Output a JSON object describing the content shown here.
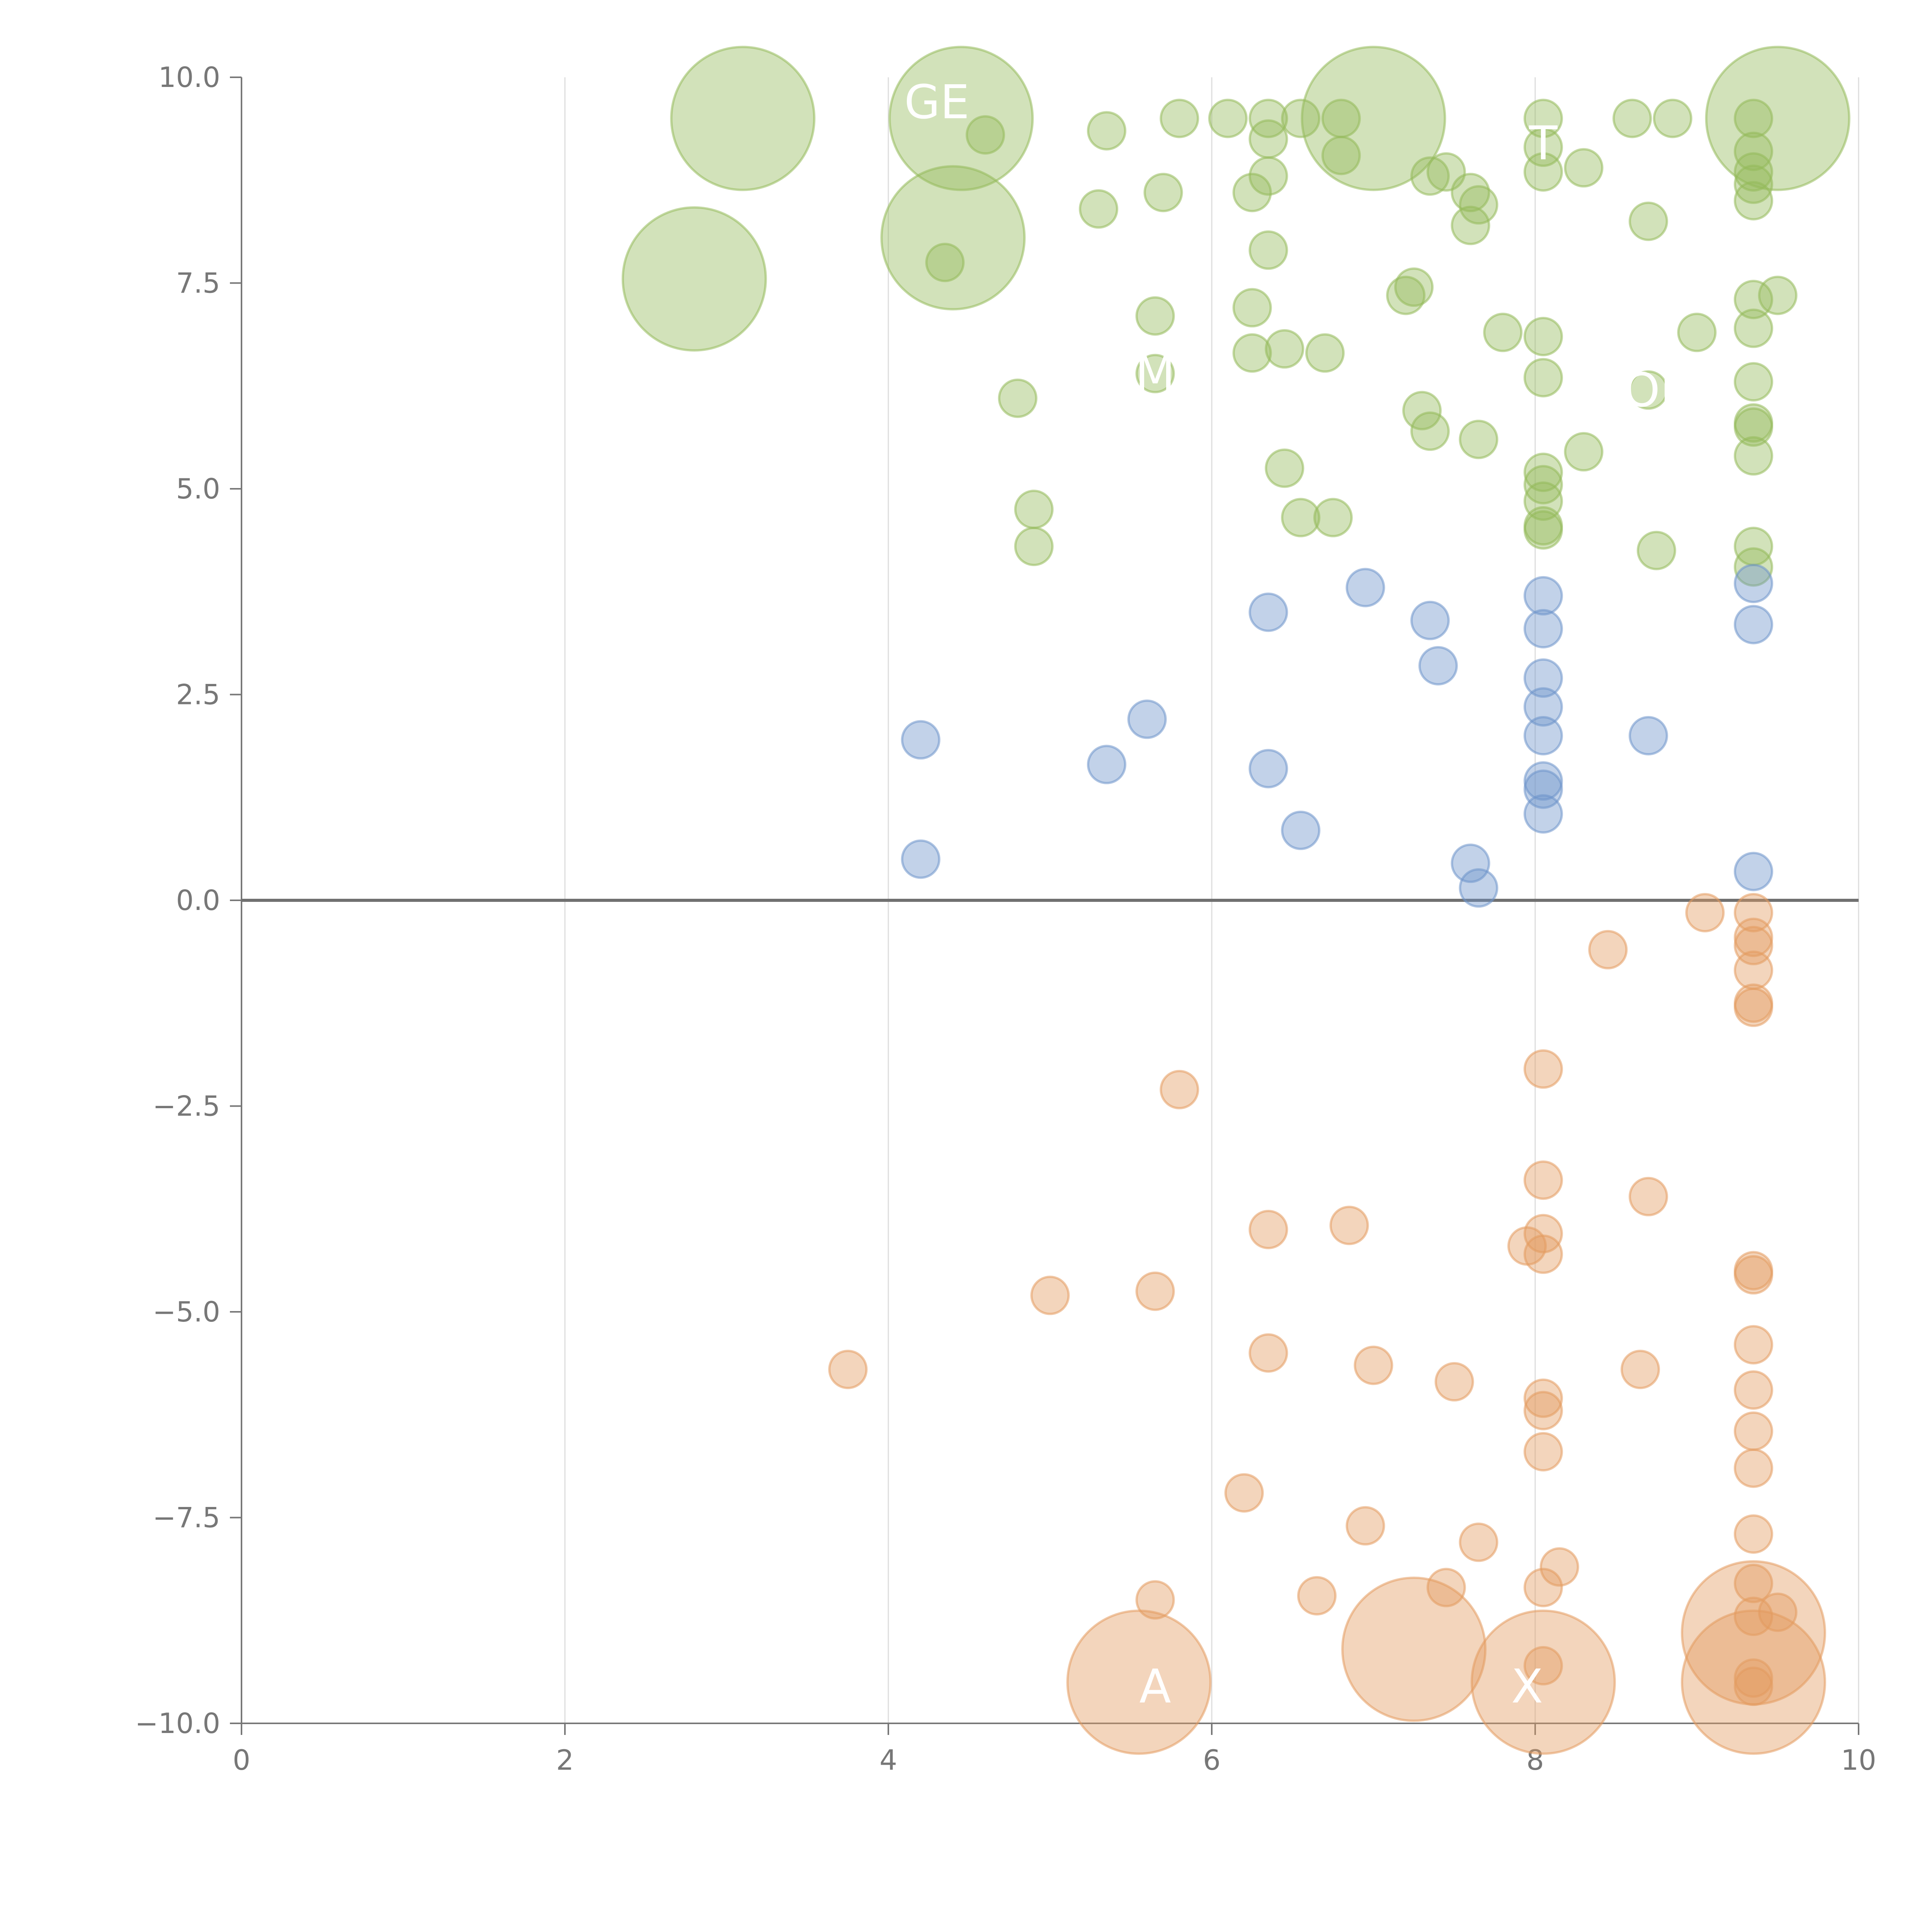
{
  "chart_data": {
    "type": "scatter",
    "title": "",
    "xlabel": "",
    "ylabel": "",
    "xlim": [
      0,
      10
    ],
    "ylim": [
      -10,
      10
    ],
    "grid": "vertical",
    "x_ticks": [
      0,
      2,
      4,
      6,
      8,
      10
    ],
    "y_ticks": [
      -10,
      -7.5,
      -5,
      -2.5,
      0,
      2.5,
      5,
      7.5,
      10
    ],
    "x_tick_labels": [
      "0",
      "2",
      "4",
      "6",
      "8",
      "10"
    ],
    "y_tick_labels": [
      "−10.0",
      "−7.5",
      "−5.0",
      "−2.5",
      "0.0",
      "2.5",
      "5.0",
      "7.5",
      "10.0"
    ],
    "zero_line": 0,
    "colors": {
      "positive_high": "#93b95a",
      "positive_low": "#6d93cb",
      "negative": "#e39a5f",
      "axis": "#777777",
      "grid": "#dddddd"
    },
    "series": [
      {
        "name": "green",
        "color": "#93b95a",
        "points": [
          [
            3.1,
            9.5,
            3
          ],
          [
            4.45,
            9.5,
            3
          ],
          [
            7.0,
            9.5,
            3
          ],
          [
            9.5,
            9.5,
            3
          ],
          [
            2.8,
            7.55,
            3
          ],
          [
            4.4,
            8.05,
            3
          ],
          [
            4.6,
            9.3,
            1
          ],
          [
            5.35,
            9.35,
            1
          ],
          [
            5.8,
            9.5,
            1
          ],
          [
            6.1,
            9.5,
            1
          ],
          [
            6.35,
            9.5,
            1
          ],
          [
            6.55,
            9.5,
            1
          ],
          [
            6.8,
            9.5,
            1
          ],
          [
            8.05,
            9.5,
            1
          ],
          [
            8.6,
            9.5,
            1
          ],
          [
            8.85,
            9.5,
            1
          ],
          [
            9.35,
            9.5,
            1
          ],
          [
            6.35,
            9.25,
            1
          ],
          [
            6.8,
            9.05,
            1
          ],
          [
            8.05,
            9.15,
            1
          ],
          [
            8.3,
            8.9,
            1
          ],
          [
            8.05,
            8.85,
            1
          ],
          [
            9.35,
            9.1,
            1
          ],
          [
            9.35,
            8.85,
            1
          ],
          [
            5.7,
            8.6,
            1
          ],
          [
            6.25,
            8.6,
            1
          ],
          [
            6.35,
            8.8,
            1
          ],
          [
            7.35,
            8.8,
            1
          ],
          [
            7.45,
            8.85,
            1
          ],
          [
            7.6,
            8.6,
            1
          ],
          [
            7.65,
            8.45,
            1
          ],
          [
            7.6,
            8.2,
            1
          ],
          [
            5.3,
            8.4,
            1
          ],
          [
            8.7,
            8.25,
            1
          ],
          [
            9.35,
            8.5,
            1
          ],
          [
            9.35,
            8.7,
            1
          ],
          [
            6.35,
            7.9,
            1
          ],
          [
            4.35,
            7.75,
            1
          ],
          [
            7.2,
            7.35,
            1
          ],
          [
            7.25,
            7.45,
            1
          ],
          [
            6.25,
            7.2,
            1
          ],
          [
            5.65,
            7.1,
            1
          ],
          [
            7.8,
            6.9,
            1
          ],
          [
            8.05,
            6.85,
            1
          ],
          [
            9.0,
            6.9,
            1
          ],
          [
            9.35,
            6.95,
            1
          ],
          [
            9.35,
            7.3,
            1
          ],
          [
            9.5,
            7.35,
            1
          ],
          [
            6.25,
            6.65,
            1
          ],
          [
            6.45,
            6.7,
            1
          ],
          [
            6.7,
            6.65,
            1
          ],
          [
            4.8,
            6.1,
            1
          ],
          [
            5.65,
            6.4,
            1
          ],
          [
            8.05,
            6.35,
            1
          ],
          [
            8.7,
            6.2,
            1
          ],
          [
            9.35,
            6.3,
            1
          ],
          [
            7.3,
            5.95,
            1
          ],
          [
            7.35,
            5.7,
            1
          ],
          [
            7.65,
            5.6,
            1
          ],
          [
            8.3,
            5.45,
            1
          ],
          [
            9.35,
            5.8,
            1
          ],
          [
            9.35,
            5.75,
            1
          ],
          [
            9.35,
            5.4,
            1
          ],
          [
            6.45,
            5.25,
            1
          ],
          [
            8.05,
            5.2,
            1
          ],
          [
            8.05,
            5.05,
            1
          ],
          [
            8.05,
            4.85,
            1
          ],
          [
            4.9,
            4.75,
            1
          ],
          [
            6.55,
            4.65,
            1
          ],
          [
            6.75,
            4.65,
            1
          ],
          [
            8.05,
            4.55,
            1
          ],
          [
            8.05,
            4.5,
            1
          ],
          [
            4.9,
            4.3,
            1
          ],
          [
            8.75,
            4.25,
            1
          ],
          [
            9.35,
            4.3,
            1
          ],
          [
            9.35,
            4.05,
            1
          ]
        ]
      },
      {
        "name": "blue",
        "color": "#6d93cb",
        "points": [
          [
            6.95,
            3.8,
            1
          ],
          [
            6.35,
            3.5,
            1
          ],
          [
            7.35,
            3.4,
            1
          ],
          [
            8.05,
            3.7,
            1
          ],
          [
            9.35,
            3.85,
            1
          ],
          [
            8.05,
            3.3,
            1
          ],
          [
            9.35,
            3.35,
            1
          ],
          [
            7.4,
            2.85,
            1
          ],
          [
            8.05,
            2.7,
            1
          ],
          [
            8.05,
            2.35,
            1
          ],
          [
            5.6,
            2.2,
            1
          ],
          [
            4.2,
            1.95,
            1
          ],
          [
            8.05,
            2.0,
            1
          ],
          [
            8.7,
            2.0,
            1
          ],
          [
            5.35,
            1.65,
            1
          ],
          [
            6.35,
            1.6,
            1
          ],
          [
            8.05,
            1.45,
            1
          ],
          [
            8.05,
            1.35,
            1
          ],
          [
            8.05,
            1.05,
            1
          ],
          [
            6.55,
            0.85,
            1
          ],
          [
            4.2,
            0.5,
            1
          ],
          [
            7.6,
            0.45,
            1
          ],
          [
            7.65,
            0.15,
            1
          ],
          [
            9.35,
            0.35,
            1
          ]
        ]
      },
      {
        "name": "orange",
        "color": "#e39a5f",
        "points": [
          [
            9.05,
            -0.15,
            1
          ],
          [
            9.35,
            -0.15,
            1
          ],
          [
            9.35,
            -0.45,
            1
          ],
          [
            9.35,
            -0.55,
            1
          ],
          [
            8.45,
            -0.6,
            1
          ],
          [
            9.35,
            -0.85,
            1
          ],
          [
            9.35,
            -1.25,
            1
          ],
          [
            9.35,
            -1.3,
            1
          ],
          [
            8.05,
            -2.05,
            1
          ],
          [
            5.8,
            -2.3,
            1
          ],
          [
            8.05,
            -3.4,
            1
          ],
          [
            8.7,
            -3.6,
            1
          ],
          [
            6.35,
            -4.0,
            1
          ],
          [
            6.85,
            -3.95,
            1
          ],
          [
            8.05,
            -4.05,
            1
          ],
          [
            8.05,
            -4.3,
            1
          ],
          [
            7.95,
            -4.2,
            1
          ],
          [
            5.0,
            -4.8,
            1
          ],
          [
            5.65,
            -4.75,
            1
          ],
          [
            9.35,
            -4.5,
            1
          ],
          [
            9.35,
            -4.55,
            1
          ],
          [
            9.35,
            -5.4,
            1
          ],
          [
            6.35,
            -5.5,
            1
          ],
          [
            3.75,
            -5.7,
            1
          ],
          [
            7.0,
            -5.65,
            1
          ],
          [
            8.65,
            -5.7,
            1
          ],
          [
            7.5,
            -5.85,
            1
          ],
          [
            9.35,
            -5.95,
            1
          ],
          [
            8.05,
            -6.05,
            1
          ],
          [
            8.05,
            -6.2,
            1
          ],
          [
            9.35,
            -6.45,
            1
          ],
          [
            8.05,
            -6.7,
            1
          ],
          [
            9.35,
            -6.9,
            1
          ],
          [
            6.2,
            -7.2,
            1
          ],
          [
            6.95,
            -7.6,
            1
          ],
          [
            9.35,
            -7.7,
            1
          ],
          [
            7.65,
            -7.8,
            1
          ],
          [
            8.15,
            -8.1,
            1
          ],
          [
            7.45,
            -8.35,
            1
          ],
          [
            8.05,
            -8.35,
            1
          ],
          [
            9.35,
            -8.3,
            1
          ],
          [
            5.65,
            -8.5,
            1
          ],
          [
            6.65,
            -8.45,
            1
          ],
          [
            9.5,
            -8.65,
            1
          ],
          [
            9.35,
            -8.7,
            1
          ],
          [
            8.05,
            -9.3,
            1
          ],
          [
            9.35,
            -9.45,
            1
          ],
          [
            9.35,
            -9.55,
            1
          ],
          [
            7.25,
            -9.1,
            3
          ],
          [
            5.55,
            -9.5,
            3
          ],
          [
            8.05,
            -9.5,
            3
          ],
          [
            9.35,
            -9.5,
            3
          ],
          [
            9.35,
            -8.9,
            3
          ]
        ]
      }
    ],
    "annotations": [
      {
        "text": "GE",
        "x": 4.3,
        "y": 9.7,
        "color": "#ffffff"
      },
      {
        "text": "T",
        "x": 8.05,
        "y": 9.2,
        "color": "#ffffff"
      },
      {
        "text": "M",
        "x": 5.65,
        "y": 6.4,
        "color": "#ffffff"
      },
      {
        "text": "OE",
        "x": 8.75,
        "y": 6.2,
        "color": "#ffffff"
      },
      {
        "text": "A",
        "x": 5.65,
        "y": -9.55,
        "color": "#ffffff"
      },
      {
        "text": "X",
        "x": 7.95,
        "y": -9.55,
        "color": "#ffffff"
      }
    ]
  }
}
